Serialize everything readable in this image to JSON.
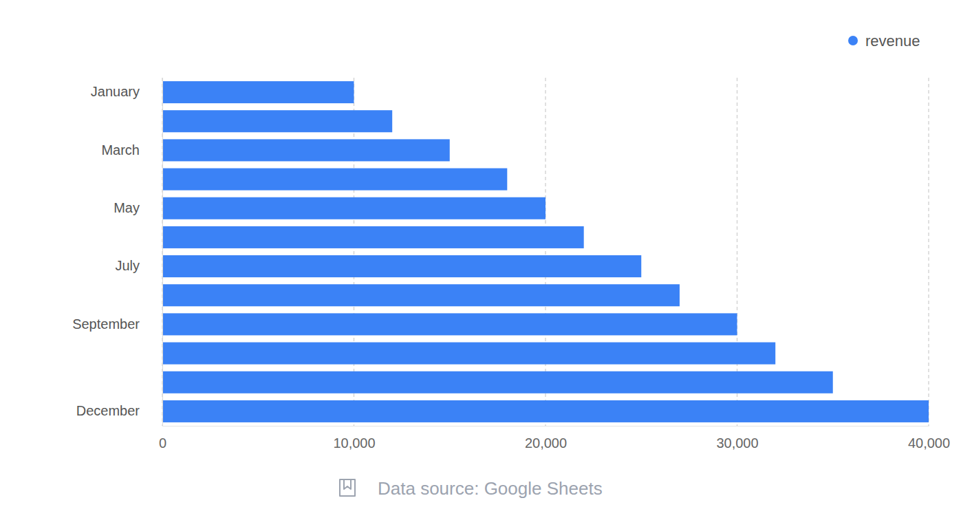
{
  "chart_data": {
    "type": "bar",
    "orientation": "horizontal",
    "categories": [
      "January",
      null,
      "March",
      null,
      "May",
      null,
      "July",
      null,
      "September",
      null,
      null,
      "December"
    ],
    "series": [
      {
        "name": "revenue",
        "color": "#3b82f6",
        "values": [
          10000,
          12000,
          15000,
          18000,
          20000,
          22000,
          25000,
          27000,
          30000,
          32000,
          35000,
          40000
        ]
      }
    ],
    "xlim": [
      0,
      40000
    ],
    "xticks": [
      0,
      {
        "value": 10000,
        "label": "10,000"
      },
      {
        "value": 20000,
        "label": "20,000"
      },
      {
        "value": 30000,
        "label": "30,000"
      },
      {
        "value": 40000,
        "label": "40,000"
      }
    ],
    "grid": true,
    "legend": "top-right",
    "caption": "Data source: Google Sheets"
  }
}
